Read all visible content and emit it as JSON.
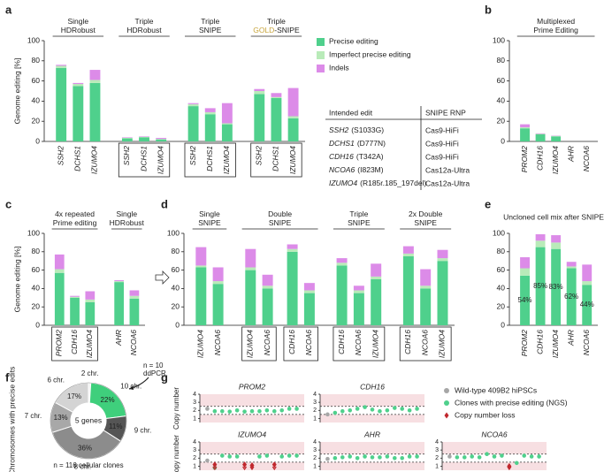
{
  "chart_data": [
    {
      "panel": "a",
      "type": "stacked-bar",
      "y_label": "Genome editing [%]",
      "ylim": [
        0,
        100
      ],
      "yticks": [
        0,
        20,
        40,
        60,
        80,
        100
      ],
      "legend": "right",
      "groups": [
        {
          "label": [
            [
              "Single"
            ],
            [
              "HDRobust"
            ]
          ],
          "boxed": false,
          "categories": [
            [
              "SSH2",
              "DCHS1",
              "IZUMO4"
            ]
          ]
        },
        {
          "label": [
            [
              "Triple"
            ],
            [
              "HDRobust"
            ]
          ],
          "boxed": true,
          "categories": [
            [
              "SSH2",
              "DCHS1",
              "IZUMO4"
            ]
          ]
        },
        {
          "label": [
            [
              "Triple"
            ],
            [
              "SNIPE"
            ]
          ],
          "boxed": true,
          "categories": [
            [
              "SSH2",
              "DCHS1",
              "IZUMO4"
            ]
          ]
        },
        {
          "label": [
            [
              "Triple"
            ],
            [
              {
                "text": "GOLD",
                "color": "#c7a43a"
              },
              "-SNIPE"
            ]
          ],
          "boxed": true,
          "categories": [
            [
              "SSH2",
              "DCHS1",
              "IZUMO4"
            ]
          ]
        }
      ],
      "series": [
        {
          "name": "Precise editing",
          "color": "#4fd08c",
          "values": [
            73,
            55,
            58,
            3,
            4,
            2,
            35,
            27,
            17,
            47,
            43,
            23
          ]
        },
        {
          "name": "Imperfect precise editing",
          "color": "#b9ebb9",
          "values": [
            2,
            2,
            3,
            0.5,
            0.5,
            0.5,
            2,
            2,
            1,
            3,
            1,
            2
          ]
        },
        {
          "name": "Indels",
          "color": "#dc8be8",
          "values": [
            1,
            1,
            10,
            0.5,
            0.5,
            1,
            1,
            4,
            20,
            2,
            4,
            28
          ]
        }
      ]
    },
    {
      "panel": "b",
      "type": "stacked-bar",
      "ylim": [
        0,
        100
      ],
      "yticks": [
        0,
        20,
        40,
        60,
        80,
        100
      ],
      "groups": [
        {
          "label": [
            [
              "Multiplexed"
            ],
            [
              "Prime Editing"
            ]
          ],
          "boxed": false,
          "categories": [
            [
              "PROM2",
              "CDH16",
              "IZUMO4",
              "AHR",
              "NCOA6"
            ]
          ]
        }
      ],
      "series": [
        {
          "color": "#4fd08c",
          "values": [
            13,
            7,
            5,
            0,
            0
          ]
        },
        {
          "color": "#b9ebb9",
          "values": [
            1,
            0.5,
            0.5,
            0,
            0
          ]
        },
        {
          "color": "#dc8be8",
          "values": [
            3,
            0.5,
            0.3,
            0,
            0
          ]
        }
      ]
    },
    {
      "panel": "c",
      "type": "stacked-bar",
      "y_label": "Genome editing [%]",
      "ylim": [
        0,
        100
      ],
      "yticks": [
        0,
        20,
        40,
        60,
        80,
        100
      ],
      "groups": [
        {
          "label": [
            [
              "4x repeated"
            ],
            [
              "Prime editing"
            ]
          ],
          "boxed": true,
          "categories": [
            [
              "PROM2",
              "CDH16",
              "IZUMO4"
            ]
          ]
        },
        {
          "label": [
            [
              "Single"
            ],
            [
              "HDRobust"
            ]
          ],
          "boxed": false,
          "categories": [
            [
              "AHR",
              "NCOA6"
            ]
          ]
        }
      ],
      "series": [
        {
          "color": "#4fd08c",
          "values": [
            57,
            30,
            25,
            47,
            29
          ]
        },
        {
          "color": "#b9ebb9",
          "values": [
            4,
            1,
            3,
            1,
            3
          ]
        },
        {
          "color": "#dc8be8",
          "values": [
            16,
            1,
            9,
            1,
            6
          ]
        }
      ]
    },
    {
      "panel": "d",
      "type": "stacked-bar",
      "ylim": [
        0,
        100
      ],
      "yticks": [
        0,
        20,
        40,
        60,
        80,
        100
      ],
      "groups": [
        {
          "label": [
            [
              "Single"
            ],
            [
              "SNIPE"
            ]
          ],
          "boxed": false,
          "categories": [
            [
              "IZUMO4",
              "NCOA6"
            ]
          ]
        },
        {
          "label": [
            [
              "Double"
            ],
            [
              "SNIPE"
            ]
          ],
          "boxed": true,
          "categories": [
            [
              "IZUMO4",
              "NCOA6"
            ],
            [
              "CDH16",
              "NCOA6"
            ]
          ]
        },
        {
          "label": [
            [
              "Triple"
            ],
            [
              "SNIPE"
            ]
          ],
          "boxed": true,
          "categories": [
            [
              "CDH16",
              "NCOA6",
              "IZUMO4"
            ]
          ]
        },
        {
          "label": [
            [
              "2x Double"
            ],
            [
              "SNIPE"
            ]
          ],
          "boxed": true,
          "categories": [
            [
              "CDH16",
              "NCOA6",
              "IZUMO4"
            ]
          ]
        }
      ],
      "series": [
        {
          "color": "#4fd08c",
          "values": [
            63,
            45,
            60,
            40,
            80,
            35,
            65,
            35,
            50,
            75,
            40,
            70
          ]
        },
        {
          "color": "#b9ebb9",
          "values": [
            2,
            3,
            3,
            3,
            3,
            3,
            3,
            3,
            3,
            3,
            3,
            3
          ]
        },
        {
          "color": "#dc8be8",
          "values": [
            20,
            15,
            20,
            12,
            5,
            8,
            5,
            5,
            14,
            8,
            18,
            9
          ]
        }
      ]
    },
    {
      "panel": "e",
      "type": "stacked-bar",
      "title": "Uncloned cell mix after SNIPE",
      "ylim": [
        0,
        100
      ],
      "yticks": [
        0,
        20,
        40,
        60,
        80,
        100
      ],
      "categories": [
        "PROM2",
        "CDH16",
        "IZUMO4",
        "AHR",
        "NCOA6"
      ],
      "series": [
        {
          "color": "#4fd08c",
          "values": [
            54,
            85,
            83,
            62,
            44
          ],
          "value_labels": [
            "54%",
            "85%",
            "83%",
            "62%",
            "44%"
          ]
        },
        {
          "color": "#b9ebb9",
          "values": [
            8,
            7,
            7,
            2,
            4
          ]
        },
        {
          "color": "#dc8be8",
          "values": [
            12,
            7,
            8,
            5,
            18
          ]
        }
      ]
    },
    {
      "panel": "f",
      "type": "donut",
      "y_label": "Chromosomes with precise edits",
      "center_label": "5 genes",
      "categories": [
        "2 chr.",
        "10 chr.",
        "9 chr.",
        "8 chr.",
        "7 chr.",
        "6 chr."
      ],
      "values": [
        1,
        22,
        11,
        36,
        13,
        17
      ],
      "value_labels": [
        null,
        "22%",
        "11%",
        "36%",
        "13%",
        "17%"
      ],
      "colors": [
        "#f2f2f2",
        "#3fcf7c",
        "#555555",
        "#8c8c8c",
        "#a8a8a8",
        "#d4d4d4"
      ],
      "annotations": [
        "n = 10",
        "ddPCR",
        "n = 116 cellular clones"
      ]
    },
    {
      "panel": "g",
      "type": "copy-number",
      "y_label": "Copy number",
      "xlim": [
        0,
        14
      ],
      "ylim": [
        0.5,
        4
      ],
      "yticks": [
        1,
        2,
        3,
        4
      ],
      "thresholds": [
        1.5,
        2.5
      ],
      "band_color": "#f7dfe2",
      "series": [
        {
          "name": "Wild-type 409B2 hiPSCs",
          "color": "#a6a6a6"
        },
        {
          "name": "Clones with precise editing (NGS)",
          "color": "#4fd08c"
        },
        {
          "name": "Copy number loss",
          "color": "#c0272d"
        }
      ],
      "subplots": [
        {
          "title": "PROM2",
          "series": [
            {
              "x": [
                1
              ],
              "values": [
                2.2
              ]
            },
            {
              "x": [
                2,
                3,
                4,
                5,
                6,
                7,
                8,
                9,
                10,
                11,
                12,
                13
              ],
              "values": [
                1.9,
                1.9,
                1.85,
                2.0,
                1.85,
                1.9,
                1.9,
                2.0,
                1.9,
                2.0,
                2.2,
                2.2
              ]
            },
            {
              "x": [],
              "values": []
            }
          ]
        },
        {
          "title": "CDH16",
          "series": [
            {
              "x": [
                1
              ],
              "values": [
                1.5
              ]
            },
            {
              "x": [
                2,
                3,
                4,
                5,
                6,
                7,
                8,
                9,
                10,
                11,
                12,
                13
              ],
              "values": [
                1.7,
                1.9,
                2.0,
                2.2,
                2.4,
                2.1,
                1.9,
                2.0,
                2.3,
                2.2,
                2.0,
                2.2
              ]
            },
            {
              "x": [],
              "values": []
            }
          ]
        },
        {
          "title": "IZUMO4",
          "series": [
            {
              "x": [
                1
              ],
              "values": [
                1.7
              ]
            },
            {
              "x": [
                2,
                3,
                4,
                5,
                8,
                9,
                11,
                12,
                13
              ],
              "values": [
                0.8,
                2.3,
                2.2,
                2.2,
                2.2,
                2.3,
                2.2,
                2.3,
                2.3
              ]
            },
            {
              "x": [
                2,
                6,
                7,
                10
              ],
              "values": [
                1.2,
                1.2,
                1.1,
                1.2
              ]
            }
          ]
        },
        {
          "title": "AHR",
          "series": [
            {
              "x": [
                1
              ],
              "values": [
                1.9
              ]
            },
            {
              "x": [
                2,
                3,
                4,
                5,
                6,
                7,
                8,
                9,
                10,
                11,
                12,
                13
              ],
              "values": [
                2.0,
                2.1,
                2.2,
                2.0,
                2.2,
                2.1,
                2.1,
                2.2,
                2.0,
                2.0,
                2.2,
                2.2
              ]
            },
            {
              "x": [],
              "values": []
            }
          ]
        },
        {
          "title": "NCOA6",
          "series": [
            {
              "x": [
                1
              ],
              "values": [
                2.2
              ]
            },
            {
              "x": [
                2,
                3,
                4,
                5,
                6,
                7,
                8,
                10,
                11,
                12,
                13
              ],
              "values": [
                2.1,
                2.1,
                2.2,
                2.1,
                2.5,
                2.2,
                2.3,
                1.4,
                2.3,
                2.2,
                2.2
              ]
            },
            {
              "x": [
                9
              ],
              "values": [
                1.0
              ]
            }
          ]
        }
      ]
    }
  ],
  "table": {
    "header": [
      "Intended edit",
      "SNIPE RNP"
    ],
    "rows": [
      [
        "SSH2",
        "(S1033G)",
        "Cas9-HiFi"
      ],
      [
        "DCHS1",
        "(D777N)",
        "Cas9-HiFi"
      ],
      [
        "CDH16",
        "(T342A)",
        "Cas9-HiFi"
      ],
      [
        "NCOA6",
        "(I823M)",
        "Cas12a-Ultra"
      ],
      [
        "IZUMO4",
        "(R185r.185_197del)",
        "Cas12a-Ultra"
      ]
    ]
  }
}
